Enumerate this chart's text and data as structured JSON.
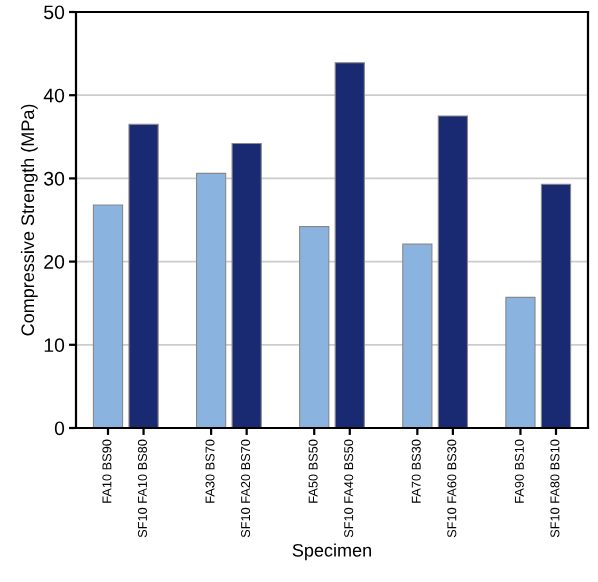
{
  "chart_data": {
    "type": "bar",
    "xlabel": "Specimen",
    "ylabel": "Compressive Strength (MPa)",
    "categories": [
      "FA10 BS90",
      "SF10 FA10 BS80",
      "FA30 BS70",
      "SF10 FA20 BS70",
      "FA50 BS50",
      "SF10 FA40 BS50",
      "FA70 BS30",
      "SF10 FA60 BS30",
      "FA90 BS10",
      "SF10 FA80 BS10"
    ],
    "values": [
      26.8,
      36.5,
      30.6,
      34.2,
      24.2,
      43.9,
      22.1,
      37.5,
      15.7,
      29.3
    ],
    "colors": [
      "#8ab4df",
      "#1a2a72",
      "#8ab4df",
      "#1a2a72",
      "#8ab4df",
      "#1a2a72",
      "#8ab4df",
      "#1a2a72",
      "#8ab4df",
      "#1a2a72"
    ],
    "ylim": [
      0,
      50
    ],
    "yticks": [
      0,
      10,
      20,
      30,
      40,
      50
    ],
    "grid": "y",
    "legend": false
  }
}
